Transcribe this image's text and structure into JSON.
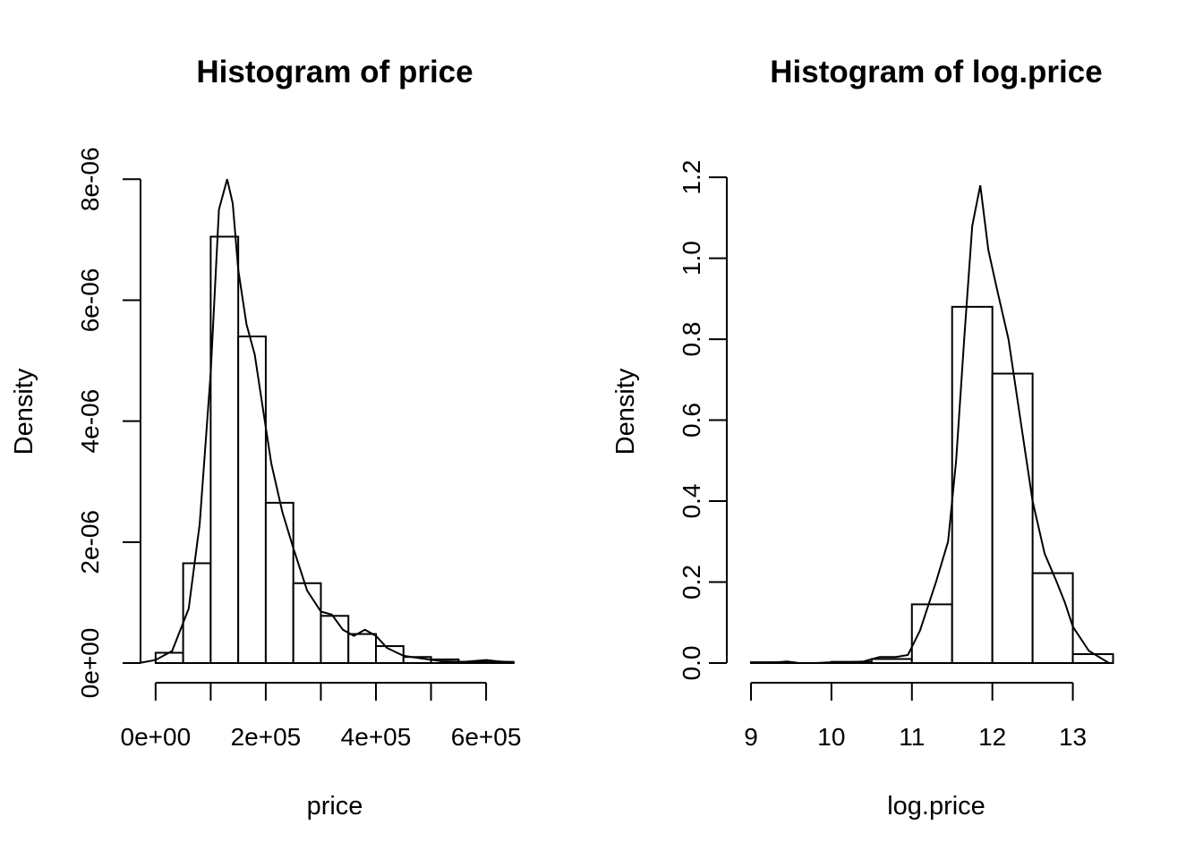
{
  "chart_data": [
    {
      "type": "histogram",
      "title": "Histogram of price",
      "xlabel": "price",
      "ylabel": "Density",
      "x_ticks": [
        0,
        200000,
        400000,
        600000
      ],
      "x_tick_labels": [
        "0e+00",
        "2e+05",
        "4e+05",
        "6e+05"
      ],
      "x_minor_ticks": [
        0,
        100000,
        200000,
        300000,
        400000,
        500000,
        600000
      ],
      "y_ticks": [
        0,
        2e-06,
        4e-06,
        6e-06,
        8e-06
      ],
      "y_tick_labels": [
        "0e+00",
        "2e-06",
        "4e-06",
        "6e-06",
        "8e-06"
      ],
      "xlim": [
        -55000,
        660000
      ],
      "ylim": [
        0,
        8.3e-06
      ],
      "bins": [
        {
          "x0": 0,
          "x1": 50000,
          "density": 1.7e-07
        },
        {
          "x0": 50000,
          "x1": 100000,
          "density": 1.65e-06
        },
        {
          "x0": 100000,
          "x1": 150000,
          "density": 7.05e-06
        },
        {
          "x0": 150000,
          "x1": 200000,
          "density": 5.4e-06
        },
        {
          "x0": 200000,
          "x1": 250000,
          "density": 2.65e-06
        },
        {
          "x0": 250000,
          "x1": 300000,
          "density": 1.32e-06
        },
        {
          "x0": 300000,
          "x1": 350000,
          "density": 7.8e-07
        },
        {
          "x0": 350000,
          "x1": 400000,
          "density": 4.8e-07
        },
        {
          "x0": 400000,
          "x1": 450000,
          "density": 2.8e-07
        },
        {
          "x0": 450000,
          "x1": 500000,
          "density": 1e-07
        },
        {
          "x0": 500000,
          "x1": 550000,
          "density": 6e-08
        },
        {
          "x0": 550000,
          "x1": 600000,
          "density": 2e-08
        },
        {
          "x0": 600000,
          "x1": 650000,
          "density": 2e-08
        }
      ],
      "density_curve": {
        "x": [
          -30000,
          0,
          30000,
          60000,
          80000,
          100000,
          115000,
          130000,
          140000,
          150000,
          165000,
          180000,
          195000,
          210000,
          230000,
          250000,
          275000,
          300000,
          320000,
          340000,
          360000,
          380000,
          400000,
          420000,
          450000,
          480000,
          520000,
          560000,
          600000,
          620000,
          650000
        ],
        "y": [
          0,
          5e-08,
          2e-07,
          9e-07,
          2.3e-06,
          4.8e-06,
          7.5e-06,
          8e-06,
          7.6e-06,
          6.5e-06,
          5.6e-06,
          5.1e-06,
          4.2e-06,
          3.3e-06,
          2.5e-06,
          1.9e-06,
          1.2e-06,
          8.5e-07,
          8e-07,
          5.5e-07,
          4.5e-07,
          5.5e-07,
          4.5e-07,
          2.5e-07,
          1.2e-07,
          8e-08,
          3e-08,
          2e-08,
          5e-08,
          3e-08,
          1e-08
        ]
      }
    },
    {
      "type": "histogram",
      "title": "Histogram of log.price",
      "xlabel": "log.price",
      "ylabel": "Density",
      "x_ticks": [
        9,
        10,
        11,
        12,
        13
      ],
      "x_tick_labels": [
        "9",
        "10",
        "11",
        "12",
        "13"
      ],
      "y_ticks": [
        0,
        0.2,
        0.4,
        0.6,
        0.8,
        1.0,
        1.2
      ],
      "y_tick_labels": [
        "0.0",
        "0.2",
        "0.4",
        "0.6",
        "0.8",
        "1.0",
        "1.2"
      ],
      "xlim": [
        8.9,
        13.65
      ],
      "ylim": [
        0,
        1.24
      ],
      "bins": [
        {
          "x0": 9.0,
          "x1": 9.5,
          "density": 0.002
        },
        {
          "x0": 9.5,
          "x1": 10.0,
          "density": 0.0
        },
        {
          "x0": 10.0,
          "x1": 10.5,
          "density": 0.003
        },
        {
          "x0": 10.5,
          "x1": 11.0,
          "density": 0.01
        },
        {
          "x0": 11.0,
          "x1": 11.5,
          "density": 0.145
        },
        {
          "x0": 11.5,
          "x1": 12.0,
          "density": 0.88
        },
        {
          "x0": 12.0,
          "x1": 12.5,
          "density": 0.715
        },
        {
          "x0": 12.5,
          "x1": 13.0,
          "density": 0.222
        },
        {
          "x0": 13.0,
          "x1": 13.5,
          "density": 0.022
        }
      ],
      "density_curve": {
        "x": [
          9.0,
          9.2,
          9.45,
          9.6,
          9.8,
          10.0,
          10.2,
          10.4,
          10.6,
          10.8,
          10.95,
          11.1,
          11.3,
          11.45,
          11.55,
          11.65,
          11.75,
          11.85,
          11.95,
          12.05,
          12.2,
          12.35,
          12.5,
          12.65,
          12.8,
          12.9,
          13.0,
          13.2,
          13.45
        ],
        "y": [
          0.0,
          0.0,
          0.004,
          0.0,
          0.0,
          0.002,
          0.002,
          0.004,
          0.015,
          0.015,
          0.02,
          0.08,
          0.2,
          0.3,
          0.5,
          0.8,
          1.08,
          1.18,
          1.02,
          0.93,
          0.8,
          0.6,
          0.4,
          0.27,
          0.2,
          0.15,
          0.09,
          0.03,
          0.0
        ]
      }
    }
  ]
}
